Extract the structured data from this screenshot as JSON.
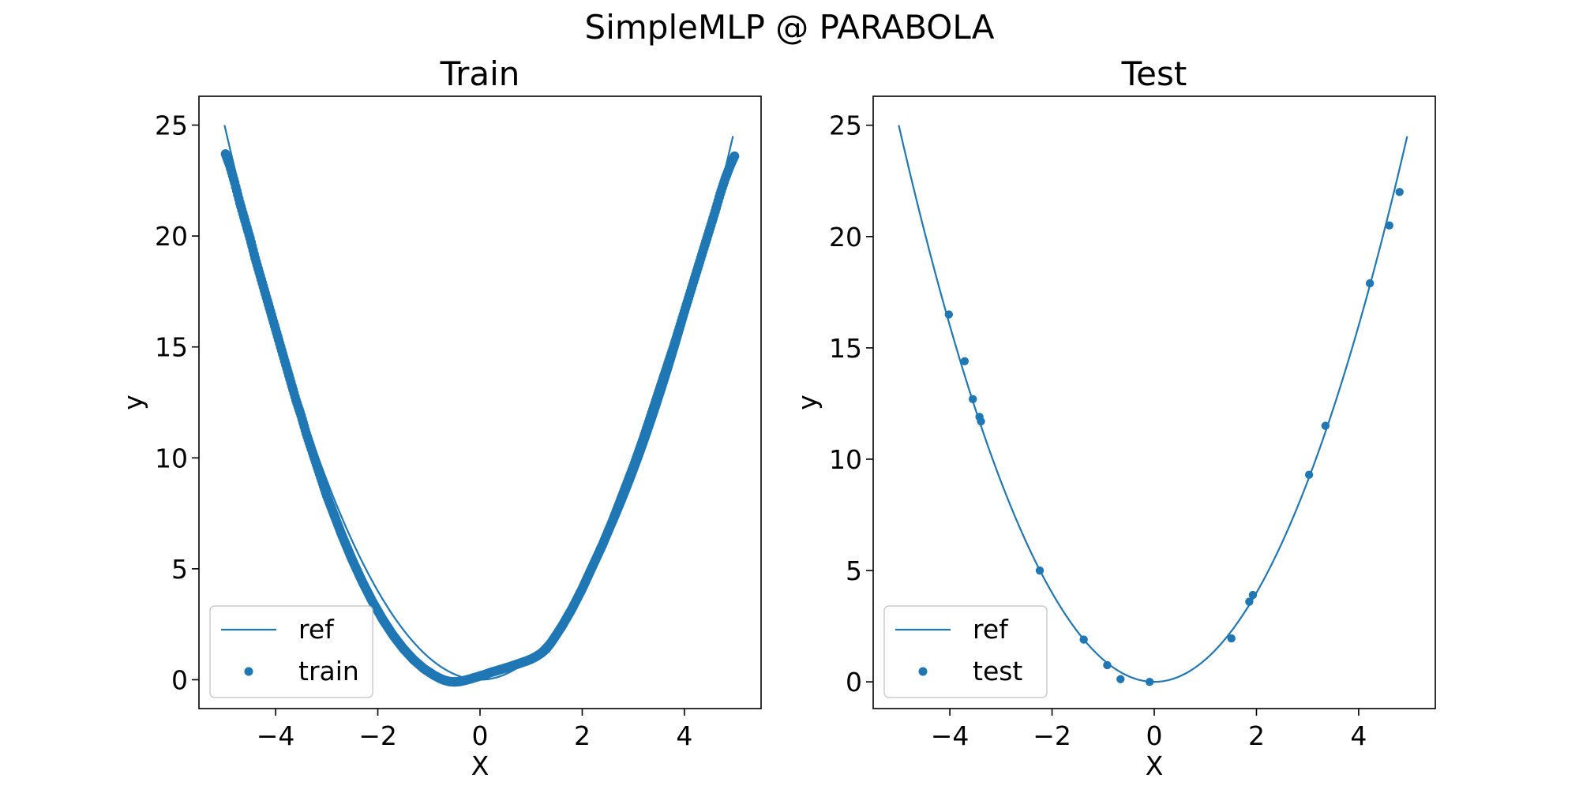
{
  "figure": {
    "suptitle": "SimpleMLP @ PARABOLA"
  },
  "colors": {
    "series": "#1f77b4",
    "axes": "#000000",
    "legend_border": "#cccccc"
  },
  "chart_data": [
    {
      "type": "scatter",
      "title": "Train",
      "xlabel": "X",
      "ylabel": "y",
      "xlim": [
        -5.5,
        5.5
      ],
      "ylim": [
        -1.3,
        26.3
      ],
      "xticks": [
        -4,
        -2,
        0,
        2,
        4
      ],
      "xtick_labels": [
        "−4",
        "−2",
        "0",
        "2",
        "4"
      ],
      "yticks": [
        0,
        5,
        10,
        15,
        20,
        25
      ],
      "ytick_labels": [
        "0",
        "5",
        "10",
        "15",
        "20",
        "25"
      ],
      "grid": false,
      "legend": {
        "position": "lower-left",
        "entries": [
          "ref",
          "train"
        ]
      },
      "reference": {
        "name": "ref",
        "kind": "line",
        "x_range": [
          -5.0,
          4.95
        ],
        "formula": "y = x^2"
      },
      "series": [
        {
          "name": "train",
          "kind": "scatter",
          "x": [
            -4.98,
            -4.9,
            -4.8,
            -4.7,
            -4.6,
            -4.5,
            -4.4,
            -4.3,
            -4.2,
            -4.1,
            -4.0,
            -3.9,
            -3.8,
            -3.7,
            -3.6,
            -3.5,
            -3.4,
            -3.3,
            -3.2,
            -3.1,
            -3.0,
            -2.9,
            -2.8,
            -2.7,
            -2.6,
            -2.5,
            -2.4,
            -2.3,
            -2.2,
            -2.1,
            -2.0,
            -1.9,
            -1.8,
            -1.7,
            -1.6,
            -1.5,
            -1.4,
            -1.3,
            -1.2,
            -1.1,
            -1.0,
            -0.9,
            -0.8,
            -0.7,
            -0.6,
            -0.5,
            -0.4,
            -0.3,
            -0.2,
            -0.1,
            0.0,
            0.1,
            0.2,
            0.3,
            0.4,
            0.5,
            0.6,
            0.7,
            0.8,
            0.9,
            1.0,
            1.1,
            1.2,
            1.3,
            1.4,
            1.5,
            1.6,
            1.7,
            1.8,
            1.9,
            2.0,
            2.1,
            2.2,
            2.3,
            2.4,
            2.5,
            2.6,
            2.7,
            2.8,
            2.9,
            3.0,
            3.1,
            3.2,
            3.3,
            3.4,
            3.5,
            3.6,
            3.7,
            3.8,
            3.9,
            4.0,
            4.1,
            4.2,
            4.3,
            4.4,
            4.5,
            4.6,
            4.7,
            4.8,
            4.9,
            4.98
          ],
          "y": [
            23.7,
            23.2,
            22.4,
            21.5,
            20.7,
            19.9,
            19.0,
            18.2,
            17.4,
            16.6,
            15.8,
            15.0,
            14.2,
            13.4,
            12.6,
            11.9,
            11.1,
            10.4,
            9.7,
            9.0,
            8.3,
            7.7,
            7.1,
            6.5,
            5.95,
            5.4,
            4.9,
            4.4,
            3.95,
            3.5,
            3.1,
            2.7,
            2.35,
            2.0,
            1.7,
            1.4,
            1.15,
            0.9,
            0.7,
            0.5,
            0.35,
            0.2,
            0.08,
            -0.02,
            -0.08,
            -0.1,
            -0.08,
            -0.03,
            0.03,
            0.1,
            0.17,
            0.24,
            0.32,
            0.39,
            0.46,
            0.53,
            0.6,
            0.68,
            0.76,
            0.84,
            0.93,
            1.05,
            1.2,
            1.4,
            1.7,
            2.05,
            2.4,
            2.8,
            3.2,
            3.65,
            4.1,
            4.6,
            5.1,
            5.6,
            6.1,
            6.65,
            7.2,
            7.8,
            8.4,
            9.0,
            9.6,
            10.25,
            10.9,
            11.6,
            12.3,
            13.0,
            13.7,
            14.4,
            15.1,
            15.85,
            16.6,
            17.35,
            18.1,
            18.85,
            19.6,
            20.35,
            21.1,
            21.9,
            22.6,
            23.2,
            23.6
          ]
        }
      ]
    },
    {
      "type": "scatter",
      "title": "Test",
      "xlabel": "X",
      "ylabel": "y",
      "xlim": [
        -5.5,
        5.5
      ],
      "ylim": [
        -1.2,
        26.3
      ],
      "xticks": [
        -4,
        -2,
        0,
        2,
        4
      ],
      "xtick_labels": [
        "−4",
        "−2",
        "0",
        "2",
        "4"
      ],
      "yticks": [
        0,
        5,
        10,
        15,
        20,
        25
      ],
      "ytick_labels": [
        "0",
        "5",
        "10",
        "15",
        "20",
        "25"
      ],
      "grid": false,
      "legend": {
        "position": "lower-left",
        "entries": [
          "ref",
          "test"
        ]
      },
      "reference": {
        "name": "ref",
        "kind": "line",
        "x_range": [
          -5.0,
          4.95
        ],
        "formula": "y = x^2"
      },
      "series": [
        {
          "name": "test",
          "kind": "scatter",
          "x": [
            -4.02,
            -3.71,
            -3.55,
            -3.42,
            -3.39,
            -2.24,
            -1.38,
            -0.92,
            -0.66,
            -0.09,
            1.51,
            1.86,
            1.93,
            3.03,
            3.35,
            4.22,
            4.6,
            4.8
          ],
          "y": [
            16.5,
            14.4,
            12.7,
            11.9,
            11.7,
            5.0,
            1.9,
            0.75,
            0.12,
            0.0,
            1.95,
            3.6,
            3.9,
            9.3,
            11.5,
            17.9,
            20.5,
            22.0
          ]
        }
      ]
    }
  ]
}
